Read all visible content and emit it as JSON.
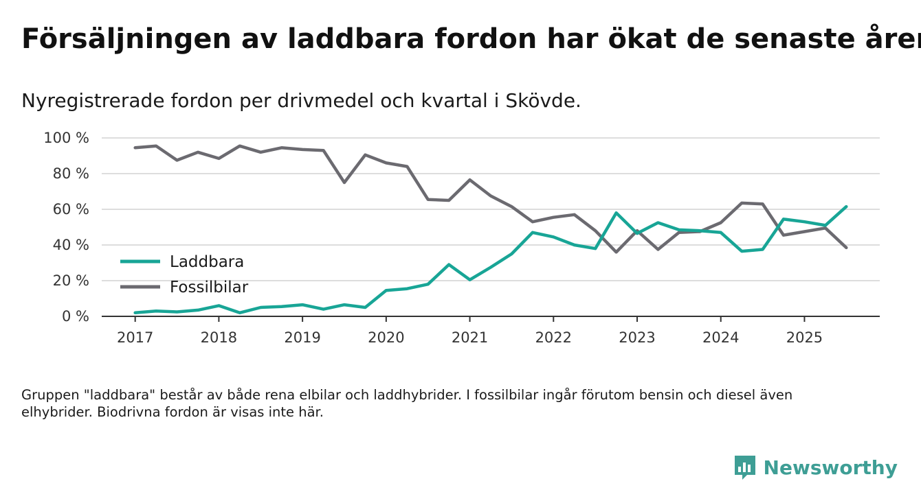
{
  "title": "Försäljningen av laddbara fordon har ökat de senaste åren",
  "subtitle": "Nyregistrerade fordon per drivmedel och kvartal i Skövde.",
  "footnote": "Gruppen \"laddbara\" består av både rena elbilar och laddhybrider. I fossilbilar ingår förutom bensin och diesel även elhybrider. Biodrivna fordon är visas inte här.",
  "brand": {
    "name": "Newsworthy",
    "icon": "newsworthy-logo-icon"
  },
  "colors": {
    "laddbara": "#18a596",
    "fossil": "#6b6a70",
    "grid": "#dddddd",
    "axis": "#333333"
  },
  "chart_data": {
    "type": "line",
    "title": "",
    "xlabel": "",
    "ylabel": "",
    "ylim": [
      0,
      100
    ],
    "xlim": [
      2016.6,
      2025.9
    ],
    "y_ticks": [
      0,
      20,
      40,
      60,
      80,
      100
    ],
    "y_tick_labels": [
      "0 %",
      "20 %",
      "40 %",
      "60 %",
      "80 %",
      "100 %"
    ],
    "x_ticks": [
      2017,
      2018,
      2019,
      2020,
      2021,
      2022,
      2023,
      2024,
      2025
    ],
    "x_tick_labels": [
      "2017",
      "2018",
      "2019",
      "2020",
      "2021",
      "2022",
      "2023",
      "2024",
      "2025"
    ],
    "legend_position": "left-middle",
    "x": [
      2017.0,
      2017.25,
      2017.5,
      2017.75,
      2018.0,
      2018.25,
      2018.5,
      2018.75,
      2019.0,
      2019.25,
      2019.5,
      2019.75,
      2020.0,
      2020.25,
      2020.5,
      2020.75,
      2021.0,
      2021.25,
      2021.5,
      2021.75,
      2022.0,
      2022.25,
      2022.5,
      2022.75,
      2023.0,
      2023.25,
      2023.5,
      2023.75,
      2024.0,
      2024.25,
      2024.5,
      2024.75,
      2025.0,
      2025.25,
      2025.5
    ],
    "series": [
      {
        "name": "Laddbara",
        "color": "#18a596",
        "values": [
          2,
          3,
          2.5,
          3.5,
          6,
          2,
          5,
          5.5,
          6.5,
          4,
          6.5,
          5,
          14.5,
          15.5,
          18,
          29,
          20.5,
          27.5,
          35,
          47,
          44.5,
          40,
          38,
          58,
          46.5,
          52.5,
          48.5,
          48,
          47,
          36.5,
          37.5,
          54.5,
          53,
          51,
          61.5
        ]
      },
      {
        "name": "Fossilbilar",
        "color": "#6b6a70",
        "values": [
          94.5,
          95.5,
          87.5,
          92,
          88.5,
          95.5,
          92,
          94.5,
          93.5,
          93,
          75,
          90.5,
          86,
          84,
          65.5,
          65,
          76.5,
          67.5,
          61.5,
          53,
          55.5,
          57,
          48,
          36,
          48,
          37.5,
          47,
          47.5,
          52.5,
          63.5,
          63,
          45.5,
          47.5,
          49.5,
          38.5
        ]
      }
    ]
  }
}
